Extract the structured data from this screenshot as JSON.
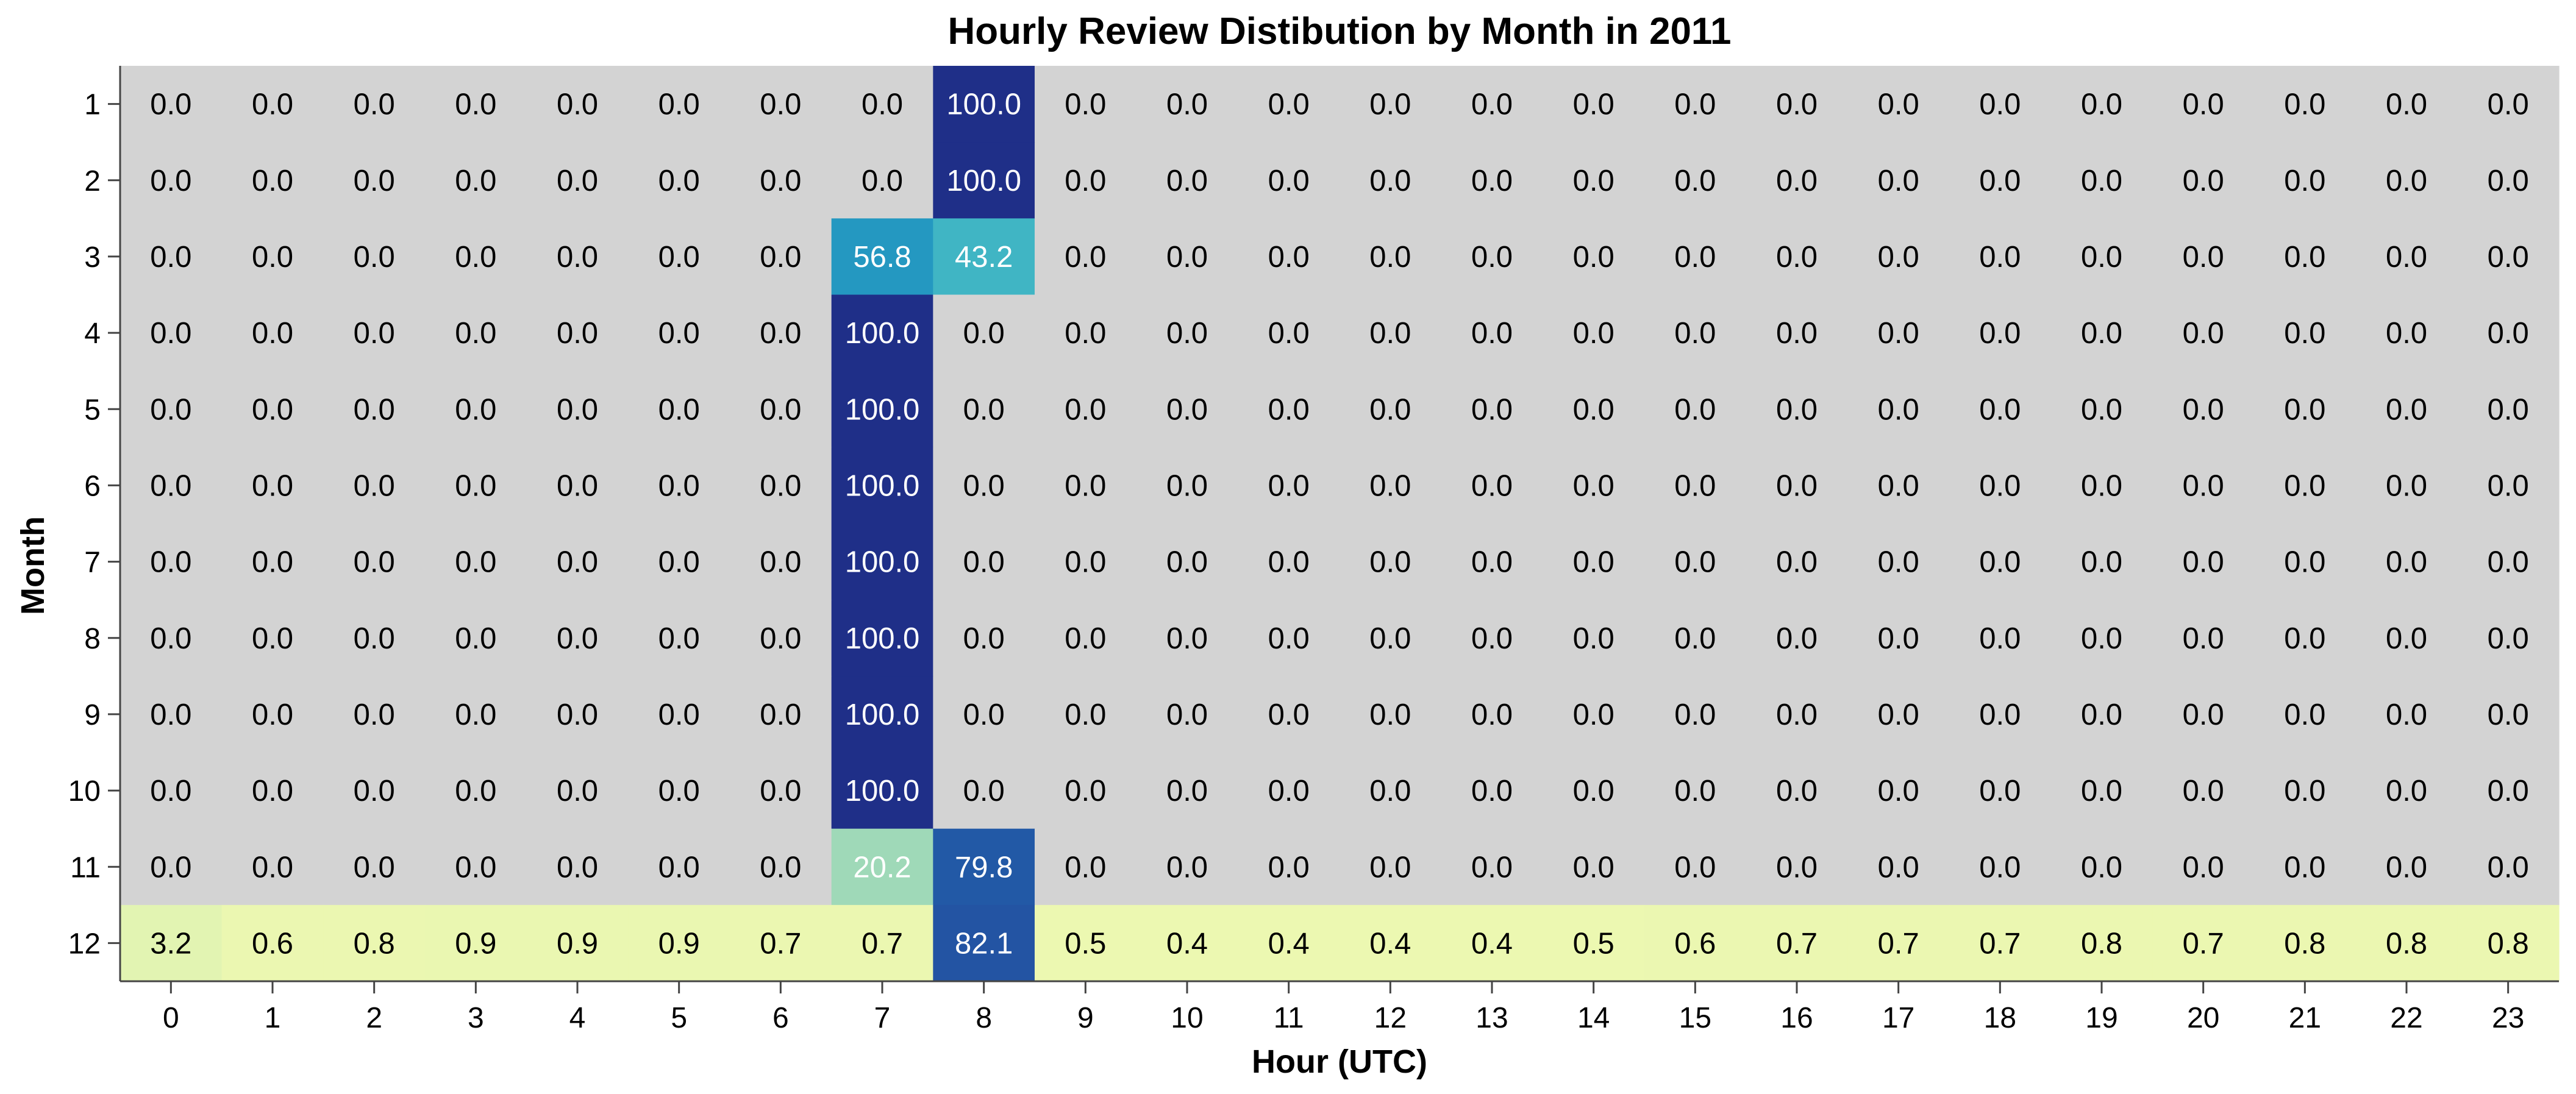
{
  "chart_data": {
    "type": "heatmap",
    "title": "Hourly Review Distibution by Month in 2011",
    "xlabel": "Hour (UTC)",
    "ylabel": "Month",
    "x": [
      "0",
      "1",
      "2",
      "3",
      "4",
      "5",
      "6",
      "7",
      "8",
      "9",
      "10",
      "11",
      "12",
      "13",
      "14",
      "15",
      "16",
      "17",
      "18",
      "19",
      "20",
      "21",
      "22",
      "23"
    ],
    "y": [
      "1",
      "2",
      "3",
      "4",
      "5",
      "6",
      "7",
      "8",
      "9",
      "10",
      "11",
      "12"
    ],
    "value_range": [
      0,
      100
    ],
    "colorscale": "YlGnBu",
    "values": [
      [
        0.0,
        0.0,
        0.0,
        0.0,
        0.0,
        0.0,
        0.0,
        0.0,
        100.0,
        0.0,
        0.0,
        0.0,
        0.0,
        0.0,
        0.0,
        0.0,
        0.0,
        0.0,
        0.0,
        0.0,
        0.0,
        0.0,
        0.0,
        0.0
      ],
      [
        0.0,
        0.0,
        0.0,
        0.0,
        0.0,
        0.0,
        0.0,
        0.0,
        100.0,
        0.0,
        0.0,
        0.0,
        0.0,
        0.0,
        0.0,
        0.0,
        0.0,
        0.0,
        0.0,
        0.0,
        0.0,
        0.0,
        0.0,
        0.0
      ],
      [
        0.0,
        0.0,
        0.0,
        0.0,
        0.0,
        0.0,
        0.0,
        56.8,
        43.2,
        0.0,
        0.0,
        0.0,
        0.0,
        0.0,
        0.0,
        0.0,
        0.0,
        0.0,
        0.0,
        0.0,
        0.0,
        0.0,
        0.0,
        0.0
      ],
      [
        0.0,
        0.0,
        0.0,
        0.0,
        0.0,
        0.0,
        0.0,
        100.0,
        0.0,
        0.0,
        0.0,
        0.0,
        0.0,
        0.0,
        0.0,
        0.0,
        0.0,
        0.0,
        0.0,
        0.0,
        0.0,
        0.0,
        0.0,
        0.0
      ],
      [
        0.0,
        0.0,
        0.0,
        0.0,
        0.0,
        0.0,
        0.0,
        100.0,
        0.0,
        0.0,
        0.0,
        0.0,
        0.0,
        0.0,
        0.0,
        0.0,
        0.0,
        0.0,
        0.0,
        0.0,
        0.0,
        0.0,
        0.0,
        0.0
      ],
      [
        0.0,
        0.0,
        0.0,
        0.0,
        0.0,
        0.0,
        0.0,
        100.0,
        0.0,
        0.0,
        0.0,
        0.0,
        0.0,
        0.0,
        0.0,
        0.0,
        0.0,
        0.0,
        0.0,
        0.0,
        0.0,
        0.0,
        0.0,
        0.0
      ],
      [
        0.0,
        0.0,
        0.0,
        0.0,
        0.0,
        0.0,
        0.0,
        100.0,
        0.0,
        0.0,
        0.0,
        0.0,
        0.0,
        0.0,
        0.0,
        0.0,
        0.0,
        0.0,
        0.0,
        0.0,
        0.0,
        0.0,
        0.0,
        0.0
      ],
      [
        0.0,
        0.0,
        0.0,
        0.0,
        0.0,
        0.0,
        0.0,
        100.0,
        0.0,
        0.0,
        0.0,
        0.0,
        0.0,
        0.0,
        0.0,
        0.0,
        0.0,
        0.0,
        0.0,
        0.0,
        0.0,
        0.0,
        0.0,
        0.0
      ],
      [
        0.0,
        0.0,
        0.0,
        0.0,
        0.0,
        0.0,
        0.0,
        100.0,
        0.0,
        0.0,
        0.0,
        0.0,
        0.0,
        0.0,
        0.0,
        0.0,
        0.0,
        0.0,
        0.0,
        0.0,
        0.0,
        0.0,
        0.0,
        0.0
      ],
      [
        0.0,
        0.0,
        0.0,
        0.0,
        0.0,
        0.0,
        0.0,
        100.0,
        0.0,
        0.0,
        0.0,
        0.0,
        0.0,
        0.0,
        0.0,
        0.0,
        0.0,
        0.0,
        0.0,
        0.0,
        0.0,
        0.0,
        0.0,
        0.0
      ],
      [
        0.0,
        0.0,
        0.0,
        0.0,
        0.0,
        0.0,
        0.0,
        20.2,
        79.8,
        0.0,
        0.0,
        0.0,
        0.0,
        0.0,
        0.0,
        0.0,
        0.0,
        0.0,
        0.0,
        0.0,
        0.0,
        0.0,
        0.0,
        0.0
      ],
      [
        3.2,
        0.6,
        0.8,
        0.9,
        0.9,
        0.9,
        0.7,
        0.7,
        82.1,
        0.5,
        0.4,
        0.4,
        0.4,
        0.4,
        0.5,
        0.6,
        0.7,
        0.7,
        0.7,
        0.8,
        0.7,
        0.8,
        0.8,
        0.8
      ]
    ]
  }
}
